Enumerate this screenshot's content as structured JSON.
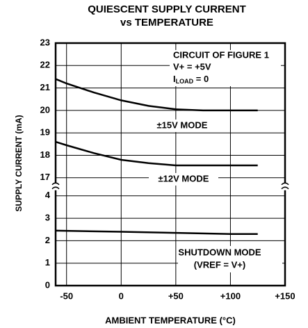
{
  "chart_data": {
    "type": "line",
    "title": [
      "QUIESCENT SUPPLY CURRENT",
      "vs TEMPERATURE"
    ],
    "xlabel": "AMBIENT TEMPERATURE (°C)",
    "ylabel": "SUPPLY CURRENT (mA)",
    "conditions": [
      "CIRCUIT OF FIGURE 1",
      "V+ = +5V"
    ],
    "load_condition": {
      "main": "I",
      "sub": "LOAD",
      "rest": " = 0"
    },
    "shutdown_note": "(VREF = V+)",
    "xlim": [
      -60,
      150
    ],
    "xticks": [
      -50,
      0,
      {
        "value": 50,
        "label": "+50"
      },
      {
        "value": 100,
        "label": "+100"
      },
      {
        "value": 150,
        "label": "+150"
      }
    ],
    "ylim": [
      0,
      23
    ],
    "ybreak": [
      4,
      17
    ],
    "yticks": [
      23,
      22,
      21,
      20,
      19,
      18,
      17,
      4,
      3,
      2,
      1,
      0
    ],
    "grid": true,
    "series": [
      {
        "name": "±15V MODE",
        "color": "#000000",
        "x": [
          -60,
          -50,
          -25,
          0,
          25,
          50,
          75,
          100,
          125
        ],
        "values": [
          21.4,
          21.2,
          20.8,
          20.45,
          20.2,
          20.05,
          20.0,
          20.0,
          20.0
        ]
      },
      {
        "name": "±12V MODE",
        "color": "#000000",
        "x": [
          -60,
          -50,
          -25,
          0,
          25,
          50,
          75,
          100,
          125
        ],
        "values": [
          18.6,
          18.45,
          18.1,
          17.8,
          17.65,
          17.55,
          17.55,
          17.55,
          17.55
        ]
      },
      {
        "name": "SHUTDOWN MODE",
        "color": "#000000",
        "x": [
          -60,
          0,
          50,
          100,
          125
        ],
        "values": [
          2.45,
          2.4,
          2.35,
          2.3,
          2.3
        ]
      }
    ]
  }
}
